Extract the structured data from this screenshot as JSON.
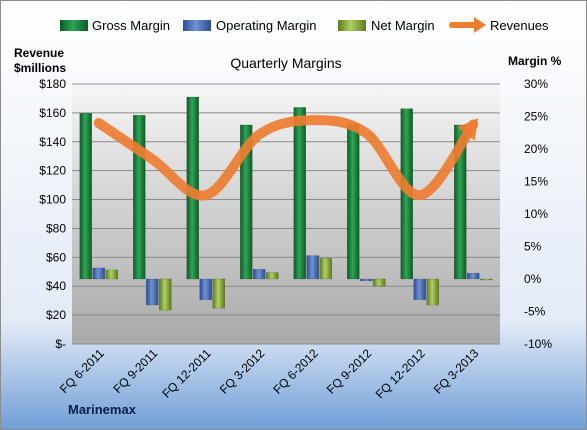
{
  "chart_data": {
    "type": "bar",
    "title": "Quarterly Margins",
    "left_axis_label_line1": "Revenue",
    "left_axis_label_line2": "$millions",
    "right_axis_label": "Margin %",
    "footer": "Marinemax",
    "categories": [
      "FQ 6-2011",
      "FQ 9-2011",
      "FQ 12-2011",
      "FQ 3-2012",
      "FQ 6-2012",
      "FQ 9-2012",
      "FQ 12-2012",
      "FQ 3-2013"
    ],
    "left_ylim": [
      0,
      180
    ],
    "left_ticks": [
      "$-",
      "$20",
      "$40",
      "$60",
      "$80",
      "$100",
      "$120",
      "$140",
      "$160",
      "$180"
    ],
    "right_ylim": [
      -10,
      30
    ],
    "right_ticks": [
      "-10%",
      "-5%",
      "0%",
      "5%",
      "10%",
      "15%",
      "20%",
      "25%",
      "30%"
    ],
    "legend": [
      "Gross Margin",
      "Operating Margin",
      "Net Margin",
      "Revenues"
    ],
    "series": [
      {
        "name": "Gross Margin",
        "color": "#1e7a3c",
        "values": [
          25.5,
          25.2,
          28.0,
          23.7,
          26.4,
          23.8,
          26.2,
          23.7
        ]
      },
      {
        "name": "Operating Margin",
        "color": "#4a6fb5",
        "values": [
          1.7,
          -4.0,
          -3.2,
          1.5,
          3.6,
          -0.3,
          -3.2,
          0.9
        ]
      },
      {
        "name": "Net Margin",
        "color": "#8aaa3c",
        "values": [
          1.4,
          -4.8,
          -4.5,
          1.0,
          3.2,
          -1.1,
          -4.0,
          0.0
        ]
      },
      {
        "name": "Revenues",
        "color": "#ed7d31",
        "values": [
          153,
          128,
          103,
          145,
          155,
          146,
          103,
          152
        ]
      }
    ],
    "grid": true
  }
}
